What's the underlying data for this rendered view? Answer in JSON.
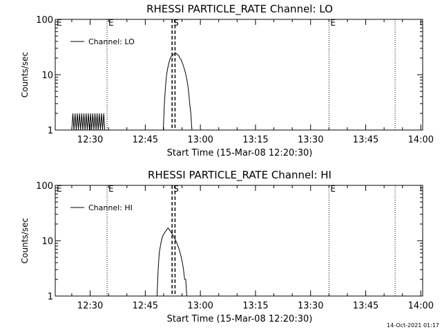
{
  "footer": {
    "timestamp": "14-Oct-2021 01:17"
  },
  "chart_data": [
    {
      "type": "line",
      "title": "RHESSI PARTICLE_RATE Channel: LO",
      "xlabel": "Start Time (15-Mar-08 12:20:30)",
      "ylabel": "Counts/sec",
      "y_scale": "log",
      "xlim": [
        740.5,
        840.5
      ],
      "ylim": [
        1,
        100
      ],
      "x_unit": "minutes after 00:00 UT, 15-Mar-08",
      "x_ticks": [
        {
          "x": 750,
          "label": "12:30"
        },
        {
          "x": 765,
          "label": "12:45"
        },
        {
          "x": 780,
          "label": "13:00"
        },
        {
          "x": 795,
          "label": "13:15"
        },
        {
          "x": 810,
          "label": "13:30"
        },
        {
          "x": 825,
          "label": "13:45"
        },
        {
          "x": 840,
          "label": "14:00"
        }
      ],
      "y_ticks": [
        {
          "y": 1,
          "label": "1"
        },
        {
          "y": 10,
          "label": "10"
        },
        {
          "y": 100,
          "label": "100"
        }
      ],
      "legend": {
        "placement": "top-left",
        "entries": [
          "Channel: LO"
        ]
      },
      "series": [
        {
          "name": "Channel: LO",
          "x": [
            745.0,
            745.3,
            745.6,
            745.9,
            746.2,
            746.5,
            746.8,
            747.1,
            747.4,
            747.7,
            748.0,
            748.3,
            748.6,
            748.9,
            749.2,
            749.5,
            749.8,
            750.1,
            750.4,
            750.7,
            751.0,
            751.3,
            751.6,
            751.9,
            752.2,
            752.5,
            752.8,
            753.1,
            753.4,
            753.7,
            754.0,
            754.3,
            754.6,
            754.9,
            755.2,
            755.5,
            755.8,
            756.1,
            756.4,
            756.7,
            757.0,
            757.3,
            757.6,
            757.9,
            758.2,
            758.5,
            758.8,
            759.1,
            759.4,
            759.7,
            760.0,
            760.3,
            760.6,
            760.9,
            761.2,
            761.5,
            761.8,
            762.1,
            762.4,
            762.7,
            763.0,
            763.3,
            763.6,
            763.9,
            764.2,
            764.5,
            764.8,
            765.1,
            765.4,
            765.7,
            766.0,
            766.3,
            766.6,
            766.9,
            767.2,
            767.5,
            767.8,
            768.1,
            768.4,
            768.7,
            769.0,
            769.3,
            769.6,
            769.9,
            770.2,
            770.5,
            770.8,
            771.1,
            771.4,
            771.7,
            772.0,
            772.3,
            772.6,
            772.9,
            773.2,
            773.5,
            773.8,
            774.1,
            774.4,
            774.7,
            775.0,
            775.3,
            775.6,
            775.9,
            776.2,
            776.5,
            776.8,
            777.1,
            777.4,
            777.7,
            778.0
          ],
          "y": [
            1,
            2,
            1,
            2,
            1,
            2,
            1,
            2,
            1,
            2,
            1,
            2,
            1,
            2,
            1,
            2,
            1,
            2,
            1,
            2,
            1,
            2,
            1,
            2,
            1,
            2,
            1,
            2,
            1,
            2,
            1,
            null,
            null,
            null,
            null,
            null,
            null,
            null,
            null,
            null,
            null,
            null,
            null,
            null,
            null,
            null,
            null,
            null,
            null,
            null,
            null,
            null,
            null,
            null,
            null,
            null,
            null,
            null,
            null,
            null,
            null,
            null,
            null,
            null,
            null,
            null,
            null,
            null,
            null,
            null,
            null,
            null,
            null,
            null,
            null,
            null,
            null,
            null,
            null,
            null,
            null,
            null,
            null,
            1,
            3,
            6,
            10,
            13,
            16,
            19,
            21,
            22,
            23,
            24,
            25,
            24,
            23,
            22,
            20,
            19,
            17,
            15,
            13,
            11,
            9,
            7,
            5,
            3,
            2,
            1,
            1
          ]
        }
      ],
      "markers": [
        {
          "x": 754.6,
          "style": "dotted",
          "label": "E"
        },
        {
          "x": 772.3,
          "style": "dashed",
          "label": "S"
        },
        {
          "x": 773.1,
          "style": "dashed",
          "label": ""
        },
        {
          "x": 815.0,
          "style": "dotted",
          "label": "E"
        },
        {
          "x": 833.0,
          "style": "dotted",
          "label": ""
        },
        {
          "x": 740.5,
          "style": "none",
          "label": "E"
        }
      ]
    },
    {
      "type": "line",
      "title": "RHESSI PARTICLE_RATE Channel: HI",
      "xlabel": "Start Time (15-Mar-08 12:20:30)",
      "ylabel": "Counts/sec",
      "y_scale": "log",
      "xlim": [
        740.5,
        840.5
      ],
      "ylim": [
        1,
        100
      ],
      "x_unit": "minutes after 00:00 UT, 15-Mar-08",
      "x_ticks": [
        {
          "x": 750,
          "label": "12:30"
        },
        {
          "x": 765,
          "label": "12:45"
        },
        {
          "x": 780,
          "label": "13:00"
        },
        {
          "x": 795,
          "label": "13:15"
        },
        {
          "x": 810,
          "label": "13:30"
        },
        {
          "x": 825,
          "label": "13:45"
        },
        {
          "x": 840,
          "label": "14:00"
        }
      ],
      "y_ticks": [
        {
          "y": 1,
          "label": "1"
        },
        {
          "y": 10,
          "label": "10"
        },
        {
          "y": 100,
          "label": "100"
        }
      ],
      "legend": {
        "placement": "top-left",
        "entries": [
          "Channel: HI"
        ]
      },
      "series": [
        {
          "name": "Channel: HI",
          "x": [
            768.2,
            768.5,
            768.8,
            769.1,
            769.4,
            769.7,
            770.0,
            770.3,
            770.6,
            770.9,
            771.2,
            771.5,
            771.8,
            772.1,
            772.4,
            772.7,
            773.0,
            773.3,
            773.6,
            773.9,
            774.2,
            774.5,
            774.8,
            775.1,
            775.4,
            775.7,
            776.0,
            776.3,
            776.6,
            776.9,
            777.2,
            777.5,
            777.8,
            778.1
          ],
          "y": [
            1,
            3,
            6,
            8,
            10,
            12,
            13,
            14,
            15,
            16,
            17,
            16,
            15,
            14,
            13,
            12,
            11,
            10,
            9,
            8,
            7,
            6,
            5,
            4,
            3,
            2,
            2,
            1,
            1,
            1,
            1,
            1,
            1,
            1
          ]
        }
      ],
      "markers": [
        {
          "x": 754.6,
          "style": "dotted",
          "label": "E"
        },
        {
          "x": 772.3,
          "style": "dashed",
          "label": "S"
        },
        {
          "x": 773.1,
          "style": "dashed",
          "label": ""
        },
        {
          "x": 815.0,
          "style": "dotted",
          "label": "E"
        },
        {
          "x": 833.0,
          "style": "dotted",
          "label": ""
        },
        {
          "x": 740.5,
          "style": "none",
          "label": "E"
        }
      ]
    }
  ]
}
